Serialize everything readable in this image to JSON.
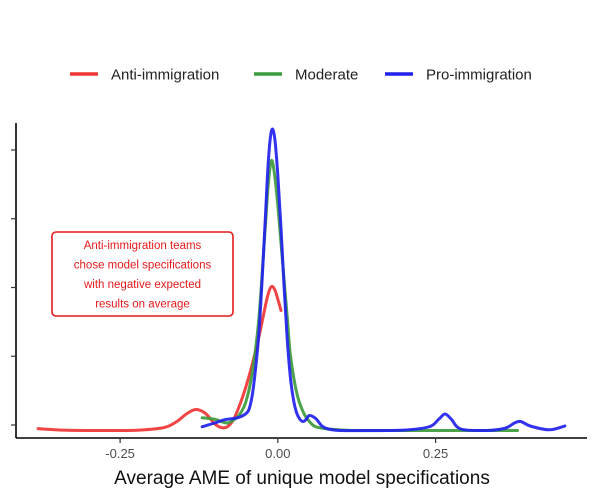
{
  "chart_data": {
    "type": "line",
    "subtype": "density",
    "title": "",
    "xlabel": "Average AME of unique model specifications",
    "ylabel": "",
    "xlim": [
      -0.415,
      0.49
    ],
    "ylim": [
      -1.0,
      41.0
    ],
    "x_ticks": [
      -0.25,
      0.0,
      0.25
    ],
    "x_tick_labels": [
      "-0.25",
      "0.00",
      "0.25"
    ],
    "y_ticks_count": 5,
    "grid": false,
    "legend_position": "top",
    "series": [
      {
        "name": "Anti-immigration",
        "color": "#f03535",
        "x": [
          -0.38,
          -0.34,
          -0.3,
          -0.26,
          -0.22,
          -0.18,
          -0.16,
          -0.145,
          -0.13,
          -0.115,
          -0.1,
          -0.09,
          -0.08,
          -0.07,
          -0.06,
          -0.05,
          -0.04,
          -0.03,
          -0.02,
          -0.015,
          -0.01,
          -0.005,
          0.0,
          0.005
        ],
        "y": [
          0.25,
          0.05,
          0.0,
          0.0,
          0.05,
          0.4,
          1.2,
          2.2,
          2.8,
          2.3,
          0.9,
          0.4,
          0.5,
          1.5,
          3.5,
          6.0,
          9.0,
          12.5,
          16.5,
          18.3,
          19.2,
          18.8,
          17.5,
          16.0
        ]
      },
      {
        "name": "Moderate",
        "color": "#3d9b3d",
        "x": [
          -0.12,
          -0.1,
          -0.09,
          -0.08,
          -0.07,
          -0.06,
          -0.05,
          -0.04,
          -0.03,
          -0.02,
          -0.015,
          -0.01,
          -0.005,
          0.0,
          0.005,
          0.01,
          0.015,
          0.02,
          0.03,
          0.04,
          0.05,
          0.06,
          0.08,
          0.12,
          0.2,
          0.3,
          0.38
        ],
        "y": [
          1.7,
          1.5,
          1.2,
          1.0,
          1.4,
          2.2,
          4.0,
          8.0,
          15.0,
          27.0,
          33.0,
          36.0,
          34.0,
          30.0,
          25.0,
          20.0,
          15.0,
          10.0,
          5.0,
          2.5,
          1.2,
          0.5,
          0.2,
          0.0,
          0.0,
          0.0,
          0.0
        ]
      },
      {
        "name": "Pro-immigration",
        "color": "#2222ee",
        "x": [
          -0.12,
          -0.1,
          -0.09,
          -0.08,
          -0.07,
          -0.06,
          -0.05,
          -0.045,
          -0.04,
          -0.035,
          -0.03,
          -0.025,
          -0.02,
          -0.015,
          -0.01,
          -0.005,
          0.0,
          0.005,
          0.01,
          0.015,
          0.02,
          0.025,
          0.03,
          0.035,
          0.04,
          0.045,
          0.05,
          0.06,
          0.07,
          0.08,
          0.1,
          0.15,
          0.2,
          0.24,
          0.255,
          0.265,
          0.275,
          0.29,
          0.33,
          0.36,
          0.375,
          0.385,
          0.4,
          0.43,
          0.455
        ],
        "y": [
          0.5,
          1.0,
          1.3,
          1.5,
          1.6,
          1.8,
          2.3,
          3.0,
          5.0,
          8.5,
          13.0,
          20.0,
          28.0,
          36.0,
          40.0,
          39.0,
          34.0,
          27.0,
          19.0,
          12.0,
          7.0,
          4.0,
          2.3,
          1.5,
          1.2,
          1.5,
          2.0,
          1.6,
          0.6,
          0.2,
          0.0,
          0.0,
          0.05,
          0.5,
          1.5,
          2.2,
          1.5,
          0.2,
          0.0,
          0.3,
          1.0,
          1.2,
          0.6,
          0.1,
          0.6
        ]
      }
    ],
    "annotation": {
      "text_lines": [
        "Anti-immigration teams",
        "chose model specifications",
        "with negative expected",
        "results on average"
      ],
      "color": "#e41a1c"
    }
  }
}
